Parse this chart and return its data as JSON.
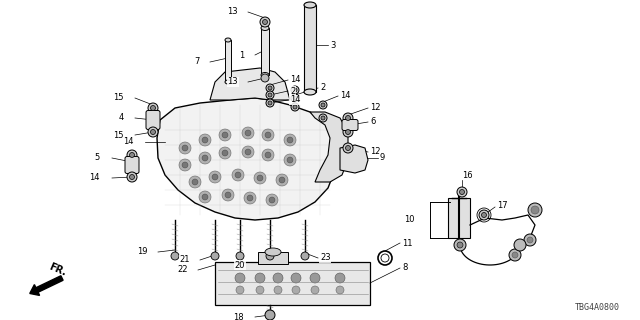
{
  "bg_color": "#ffffff",
  "line_color": "#000000",
  "part_number": "TBG4A0800",
  "fr_label": "FR.",
  "figsize": [
    6.4,
    3.2
  ],
  "dpi": 100,
  "xlim": [
    0,
    640
  ],
  "ylim": [
    320,
    0
  ]
}
